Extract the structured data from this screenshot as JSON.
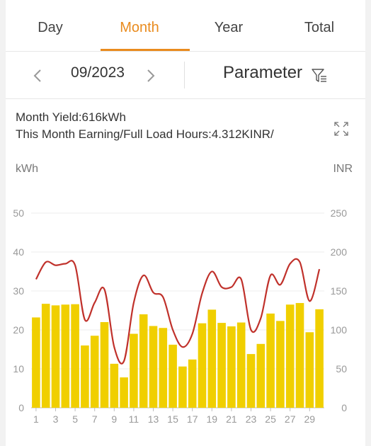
{
  "tabs": [
    {
      "label": "Day",
      "active": false
    },
    {
      "label": "Month",
      "active": true
    },
    {
      "label": "Year",
      "active": false
    },
    {
      "label": "Total",
      "active": false
    }
  ],
  "toolbar": {
    "date": "09/2023",
    "parameter_label": "Parameter",
    "prev_icon": "chevron-left-icon",
    "next_icon": "chevron-right-icon",
    "filter_icon": "filter-list-icon"
  },
  "info": {
    "yield_text": "Month Yield:616kWh",
    "earning_text": "This Month Earning/Full Load Hours:4.312KINR/",
    "expand_icon": "expand-icon"
  },
  "colors": {
    "accent": "#e98b1e",
    "bar": "#f0cf00",
    "line": "#c0312b"
  },
  "chart_data": {
    "type": "bar",
    "left_unit": "kWh",
    "right_unit": "INR",
    "x": [
      1,
      2,
      3,
      4,
      5,
      6,
      7,
      8,
      9,
      10,
      11,
      12,
      13,
      14,
      15,
      16,
      17,
      18,
      19,
      20,
      21,
      22,
      23,
      24,
      25,
      26,
      27,
      28,
      29,
      30
    ],
    "x_tick_labels": [
      "1",
      "3",
      "5",
      "7",
      "9",
      "11",
      "13",
      "15",
      "17",
      "19",
      "21",
      "23",
      "25",
      "27",
      "29"
    ],
    "ylim_left": [
      0,
      50
    ],
    "yticks_left": [
      0,
      10,
      20,
      30,
      40,
      50
    ],
    "ylim_right": [
      0,
      250
    ],
    "yticks_right": [
      0,
      50,
      100,
      150,
      200,
      250
    ],
    "grid": true,
    "series": [
      {
        "type": "bar",
        "axis": "left",
        "values": [
          23.2,
          26.7,
          26.3,
          26.5,
          26.6,
          16.0,
          18.5,
          22.0,
          11.3,
          7.8,
          19.0,
          24.0,
          21.0,
          20.5,
          16.2,
          10.6,
          12.4,
          21.7,
          25.2,
          21.8,
          20.9,
          21.9,
          13.8,
          16.4,
          24.2,
          22.3,
          26.5,
          26.9,
          19.4,
          25.3
        ]
      },
      {
        "type": "line",
        "axis": "right",
        "values": [
          165,
          187,
          183,
          185,
          183,
          113,
          135,
          152,
          78,
          60,
          135,
          170,
          148,
          142,
          100,
          78,
          95,
          147,
          175,
          155,
          155,
          165,
          100,
          115,
          170,
          158,
          185,
          187,
          137,
          178
        ]
      }
    ]
  }
}
